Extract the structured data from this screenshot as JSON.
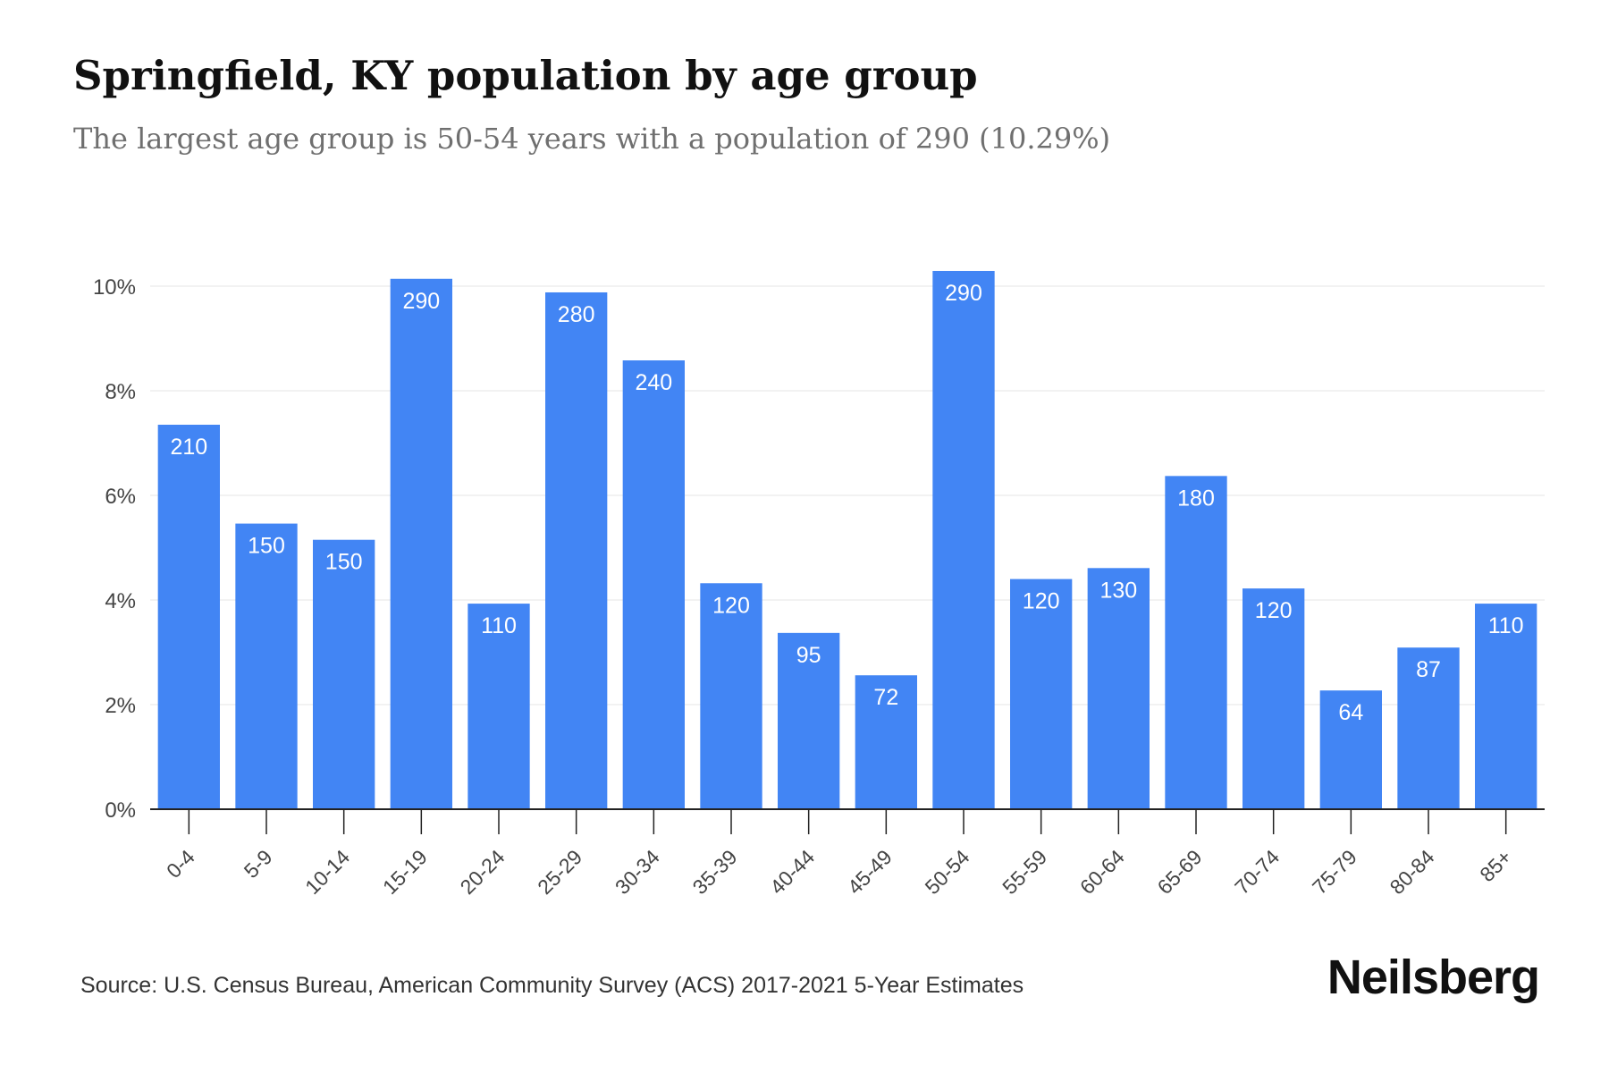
{
  "header": {
    "title": "Springfield, KY population by age group",
    "subtitle": "The largest age group is 50-54 years with a population of 290 (10.29%)"
  },
  "footer": {
    "source": "Source: U.S. Census Bureau, American Community Survey (ACS) 2017-2021 5-Year Estimates",
    "brand": "Neilsberg"
  },
  "colors": {
    "bar": "#4285f4",
    "bar_label": "#ffffff",
    "grid": "#eeeeee",
    "axis": "#222222",
    "tick_text": "#444444"
  },
  "chart_data": {
    "type": "bar",
    "categories": [
      "0-4",
      "5-9",
      "10-14",
      "15-19",
      "20-24",
      "25-29",
      "30-34",
      "35-39",
      "40-44",
      "45-49",
      "50-54",
      "55-59",
      "60-64",
      "65-69",
      "70-74",
      "75-79",
      "80-84",
      "85+"
    ],
    "values": [
      7.35,
      5.46,
      5.15,
      10.14,
      3.93,
      9.88,
      8.58,
      4.32,
      3.37,
      2.56,
      10.29,
      4.4,
      4.61,
      6.37,
      4.22,
      2.27,
      3.09,
      3.93
    ],
    "data_labels": [
      "210",
      "150",
      "150",
      "290",
      "110",
      "280",
      "240",
      "120",
      "95",
      "72",
      "290",
      "120",
      "130",
      "180",
      "120",
      "64",
      "87",
      "110"
    ],
    "y_ticks": [
      0,
      2,
      4,
      6,
      8,
      10
    ],
    "y_tick_labels": [
      "0%",
      "2%",
      "4%",
      "6%",
      "8%",
      "10%"
    ],
    "ylim": [
      0,
      10.29
    ],
    "xlabel": "",
    "ylabel": "",
    "grid": true,
    "legend": "none"
  }
}
